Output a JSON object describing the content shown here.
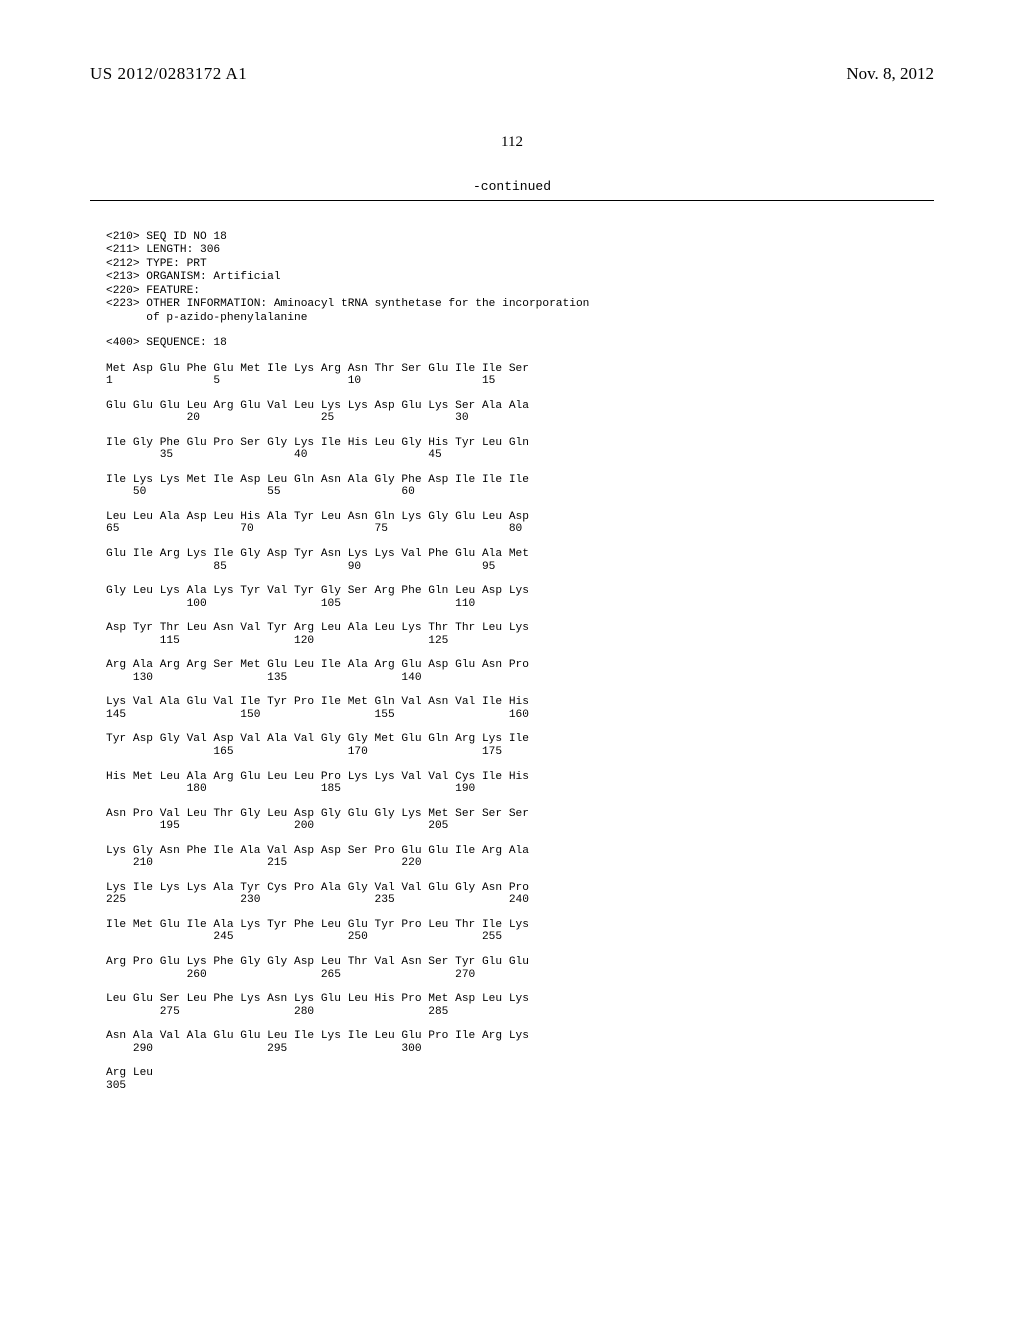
{
  "header": {
    "pub_number": "US 2012/0283172 A1",
    "pub_date": "Nov. 8, 2012"
  },
  "page_number": "112",
  "continued_label": "-continued",
  "meta": {
    "l210": "<210> SEQ ID NO 18",
    "l211": "<211> LENGTH: 306",
    "l212": "<212> TYPE: PRT",
    "l213": "<213> ORGANISM: Artificial",
    "l220": "<220> FEATURE:",
    "l223a": "<223> OTHER INFORMATION: Aminoacyl tRNA synthetase for the incorporation",
    "l223b": "      of p-azido-phenylalanine",
    "l400": "<400> SEQUENCE: 18"
  },
  "rows": [
    {
      "aa": "Met Asp Glu Phe Glu Met Ile Lys Arg Asn Thr Ser Glu Ile Ile Ser",
      "nm": "1               5                   10                  15"
    },
    {
      "aa": "Glu Glu Glu Leu Arg Glu Val Leu Lys Lys Asp Glu Lys Ser Ala Ala",
      "nm": "            20                  25                  30"
    },
    {
      "aa": "Ile Gly Phe Glu Pro Ser Gly Lys Ile His Leu Gly His Tyr Leu Gln",
      "nm": "        35                  40                  45"
    },
    {
      "aa": "Ile Lys Lys Met Ile Asp Leu Gln Asn Ala Gly Phe Asp Ile Ile Ile",
      "nm": "    50                  55                  60"
    },
    {
      "aa": "Leu Leu Ala Asp Leu His Ala Tyr Leu Asn Gln Lys Gly Glu Leu Asp",
      "nm": "65                  70                  75                  80"
    },
    {
      "aa": "Glu Ile Arg Lys Ile Gly Asp Tyr Asn Lys Lys Val Phe Glu Ala Met",
      "nm": "                85                  90                  95"
    },
    {
      "aa": "Gly Leu Lys Ala Lys Tyr Val Tyr Gly Ser Arg Phe Gln Leu Asp Lys",
      "nm": "            100                 105                 110"
    },
    {
      "aa": "Asp Tyr Thr Leu Asn Val Tyr Arg Leu Ala Leu Lys Thr Thr Leu Lys",
      "nm": "        115                 120                 125"
    },
    {
      "aa": "Arg Ala Arg Arg Ser Met Glu Leu Ile Ala Arg Glu Asp Glu Asn Pro",
      "nm": "    130                 135                 140"
    },
    {
      "aa": "Lys Val Ala Glu Val Ile Tyr Pro Ile Met Gln Val Asn Val Ile His",
      "nm": "145                 150                 155                 160"
    },
    {
      "aa": "Tyr Asp Gly Val Asp Val Ala Val Gly Gly Met Glu Gln Arg Lys Ile",
      "nm": "                165                 170                 175"
    },
    {
      "aa": "His Met Leu Ala Arg Glu Leu Leu Pro Lys Lys Val Val Cys Ile His",
      "nm": "            180                 185                 190"
    },
    {
      "aa": "Asn Pro Val Leu Thr Gly Leu Asp Gly Glu Gly Lys Met Ser Ser Ser",
      "nm": "        195                 200                 205"
    },
    {
      "aa": "Lys Gly Asn Phe Ile Ala Val Asp Asp Ser Pro Glu Glu Ile Arg Ala",
      "nm": "    210                 215                 220"
    },
    {
      "aa": "Lys Ile Lys Lys Ala Tyr Cys Pro Ala Gly Val Val Glu Gly Asn Pro",
      "nm": "225                 230                 235                 240"
    },
    {
      "aa": "Ile Met Glu Ile Ala Lys Tyr Phe Leu Glu Tyr Pro Leu Thr Ile Lys",
      "nm": "                245                 250                 255"
    },
    {
      "aa": "Arg Pro Glu Lys Phe Gly Gly Asp Leu Thr Val Asn Ser Tyr Glu Glu",
      "nm": "            260                 265                 270"
    },
    {
      "aa": "Leu Glu Ser Leu Phe Lys Asn Lys Glu Leu His Pro Met Asp Leu Lys",
      "nm": "        275                 280                 285"
    },
    {
      "aa": "Asn Ala Val Ala Glu Glu Leu Ile Lys Ile Leu Glu Pro Ile Arg Lys",
      "nm": "    290                 295                 300"
    },
    {
      "aa": "Arg Leu",
      "nm": "305"
    }
  ]
}
